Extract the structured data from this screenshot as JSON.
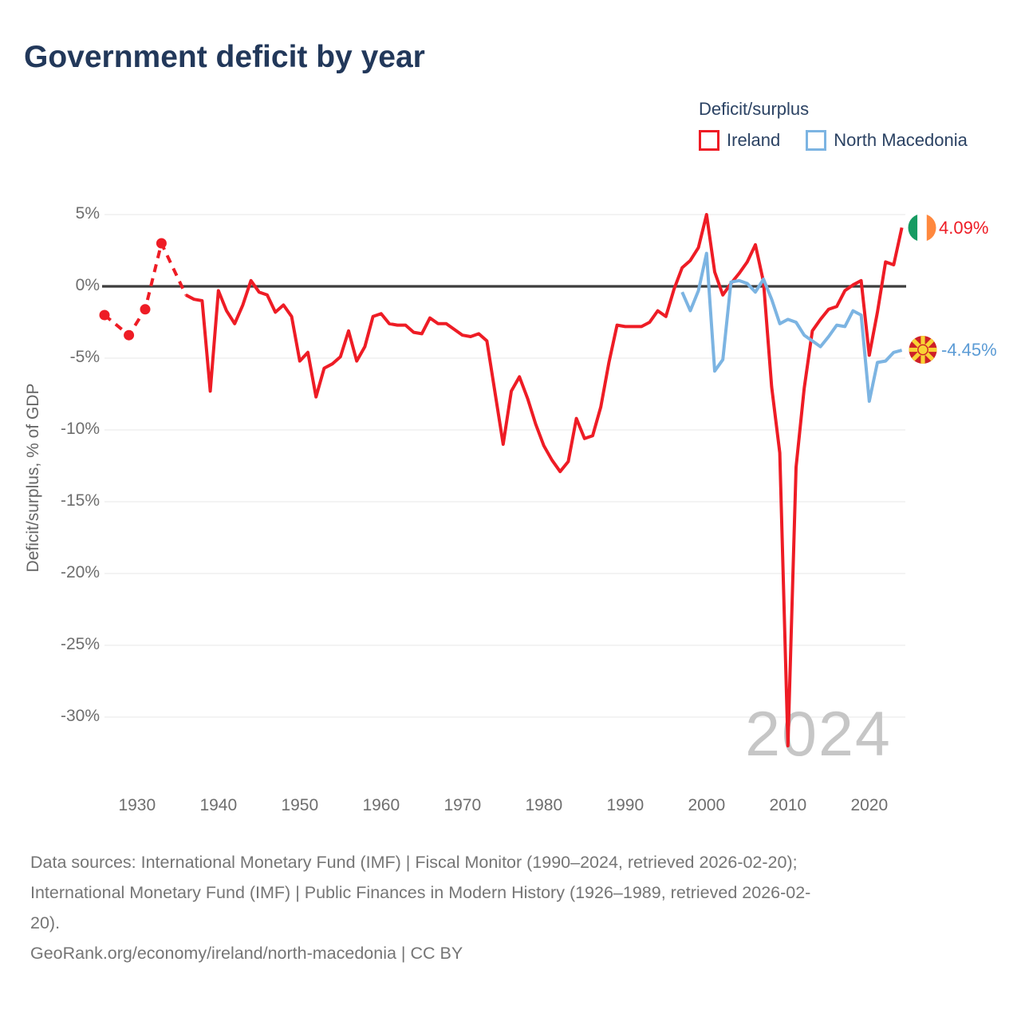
{
  "title": "Government deficit by year",
  "legend": {
    "title": "Deficit/surplus",
    "items": [
      {
        "label": "Ireland",
        "color": "#ee1c25"
      },
      {
        "label": "North Macedonia",
        "color": "#7cb4e2"
      }
    ]
  },
  "y_axis": {
    "title": "Deficit/surplus, % of GDP",
    "ticks": [
      {
        "label": "5%",
        "value": 5
      },
      {
        "label": "0%",
        "value": 0
      },
      {
        "label": "-5%",
        "value": -5
      },
      {
        "label": "-10%",
        "value": -10
      },
      {
        "label": "-15%",
        "value": -15
      },
      {
        "label": "-20%",
        "value": -20
      },
      {
        "label": "-25%",
        "value": -25
      },
      {
        "label": "-30%",
        "value": -30
      }
    ]
  },
  "x_axis": {
    "ticks": [
      {
        "label": "1930",
        "year": 1930
      },
      {
        "label": "1940",
        "year": 1940
      },
      {
        "label": "1950",
        "year": 1950
      },
      {
        "label": "1960",
        "year": 1960
      },
      {
        "label": "1970",
        "year": 1970
      },
      {
        "label": "1980",
        "year": 1980
      },
      {
        "label": "1990",
        "year": 1990
      },
      {
        "label": "2000",
        "year": 2000
      },
      {
        "label": "2010",
        "year": 2010
      },
      {
        "label": "2020",
        "year": 2020
      }
    ]
  },
  "end_labels": {
    "ireland": {
      "value_text": "4.09%",
      "value": 4.09,
      "flag": "ireland-flag"
    },
    "north_macedonia": {
      "value_text": "-4.45%",
      "value": -4.45,
      "flag": "north-macedonia-flag"
    }
  },
  "watermark": "2024",
  "footer": {
    "lines": [
      "Data sources: International Monetary Fund (IMF) | Fiscal Monitor (1990–2024, retrieved 2026-02-20);",
      "International Monetary Fund (IMF) | Public Finances in Modern History (1926–1989, retrieved 2026-02-",
      "20).",
      "GeoRank.org/economy/ireland/north-macedonia | CC BY"
    ]
  },
  "chart_data": {
    "type": "line",
    "title": "Government deficit by year",
    "ylabel": "Deficit/surplus, % of GDP",
    "unit": "% of GDP",
    "xlim": [
      1926,
      2024
    ],
    "ylim": [
      -33,
      6
    ],
    "grid": true,
    "legend_position": "top-right",
    "zero_line": true,
    "series": [
      {
        "name": "Ireland",
        "color": "#ee1c25",
        "sparse_dashed_points": [
          [
            1926,
            -2.0
          ],
          [
            1929,
            -3.4
          ],
          [
            1931,
            -1.6
          ],
          [
            1933,
            3.0
          ],
          [
            1936,
            -0.6
          ]
        ],
        "solid_start_year": 1936,
        "solid_values": [
          -0.6,
          -0.9,
          -1.0,
          -7.3,
          -0.3,
          -1.7,
          -2.6,
          -1.3,
          0.4,
          -0.4,
          -0.6,
          -1.8,
          -1.3,
          -2.1,
          -5.2,
          -4.6,
          -7.7,
          -5.7,
          -5.4,
          -4.9,
          -3.1,
          -5.2,
          -4.2,
          -2.1,
          -1.9,
          -2.6,
          -2.7,
          -2.7,
          -3.2,
          -3.3,
          -2.2,
          -2.6,
          -2.6,
          -3.0,
          -3.4,
          -3.5,
          -3.3,
          -3.8,
          -7.4,
          -11.0,
          -7.3,
          -6.3,
          -7.8,
          -9.6,
          -11.1,
          -12.1,
          -12.9,
          -12.2,
          -9.2,
          -10.6,
          -10.4,
          -8.4,
          -5.3,
          -2.7,
          -2.8,
          -2.8,
          -2.8,
          -2.5,
          -1.7,
          -2.1,
          -0.2,
          1.3,
          1.8,
          2.7,
          5.0,
          1.0,
          -0.6,
          0.2,
          0.9,
          1.7,
          2.9,
          0.3,
          -7.0,
          -11.6,
          -32.0,
          -12.6,
          -7.1,
          -3.1,
          -2.3,
          -1.6,
          -1.4,
          -0.3,
          0.1,
          0.4,
          -4.8,
          -1.8,
          1.7,
          1.5,
          4.09
        ],
        "end_value": 4.09
      },
      {
        "name": "North Macedonia",
        "color": "#7cb4e2",
        "start_year": 1997,
        "values": [
          -0.4,
          -1.7,
          -0.3,
          2.3,
          -5.9,
          -5.1,
          0.3,
          0.4,
          0.2,
          -0.4,
          0.5,
          -0.9,
          -2.6,
          -2.3,
          -2.5,
          -3.4,
          -3.8,
          -4.2,
          -3.5,
          -2.7,
          -2.8,
          -1.7,
          -2.0,
          -8.0,
          -5.3,
          -5.2,
          -4.6,
          -4.45
        ],
        "end_value": -4.45
      }
    ]
  }
}
